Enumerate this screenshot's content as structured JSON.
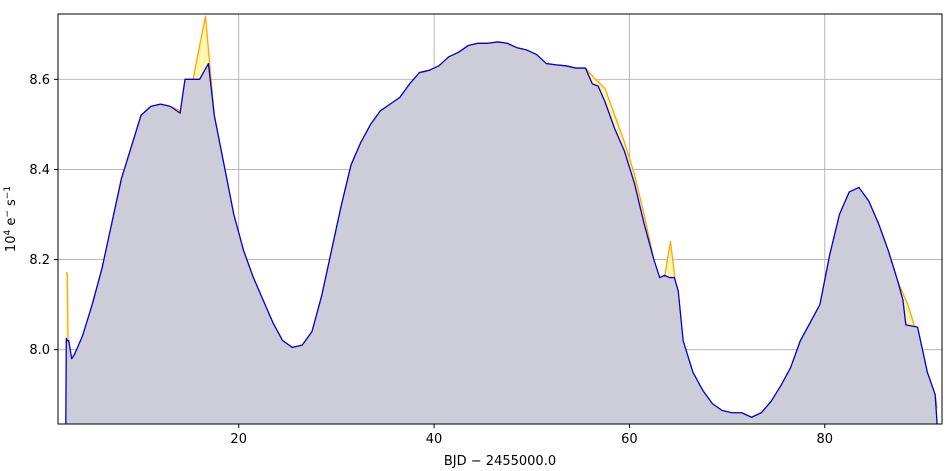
{
  "chart_data": {
    "type": "area",
    "xlabel": "BJD − 2455000.0",
    "ylabel_base": "10",
    "ylabel_base_exp": "4",
    "ylabel_unit": " e",
    "ylabel_unit_sup": "−",
    "ylabel_unit2": " s",
    "ylabel_unit2_sup": "−1",
    "xlim": [
      1.5,
      92.0
    ],
    "ylim": [
      7.835,
      8.745
    ],
    "xticks": [
      20,
      40,
      60,
      80
    ],
    "xtick_labels": [
      "20",
      "40",
      "60",
      "80"
    ],
    "yticks": [
      8.0,
      8.2,
      8.4,
      8.6
    ],
    "ytick_labels": [
      "8.0",
      "8.2",
      "8.4",
      "8.6"
    ],
    "grid": true,
    "colors": {
      "raw": "#ffa500",
      "raw_fill": "#fff6b0",
      "corrected": "#0000cd",
      "corrected_fill": "#cccdd8",
      "grid": "#b0b0b0",
      "frame": "#000000"
    },
    "series": [
      {
        "x": [
          2.3,
          2.45,
          2.55,
          3.0,
          4.0,
          5.0,
          6.0,
          7.0,
          8.0,
          9.0,
          10.0,
          11.0,
          12.0,
          13.0,
          14.0,
          14.6,
          15.5,
          16.6,
          17.5,
          18.5,
          19.5,
          20.5,
          21.5,
          22.5,
          23.5,
          24.5,
          25.5,
          26.5,
          27.5,
          28.5,
          29.5,
          30.5,
          31.5,
          32.5,
          33.5,
          34.5,
          35.5,
          36.5,
          37.5,
          38.5,
          39.5,
          40.5,
          41.5,
          42.5,
          43.5,
          44.5,
          45.5,
          46.5,
          47.5,
          48.5,
          49.5,
          50.5,
          51.5,
          52.5,
          53.5,
          54.5,
          55.5,
          56.5,
          57.5,
          58.5,
          59.5,
          60.5,
          61.5,
          62.5,
          63.2,
          64.2,
          64.6,
          65.5,
          66.5,
          67.5,
          68.5,
          69.5,
          70.5,
          71.5,
          72.5,
          73.5,
          74.5,
          75.5,
          76.5,
          77.5,
          78.5,
          79.5,
          80.5,
          81.5,
          82.5,
          83.5,
          84.5,
          85.5,
          86.5,
          87.5,
          88.5,
          89.5,
          90.5,
          91.3,
          91.5
        ],
        "y": [
          8.17,
          8.17,
          7.98,
          7.97,
          8.02,
          8.1,
          8.18,
          8.28,
          8.38,
          8.45,
          8.52,
          8.54,
          8.545,
          8.54,
          8.53,
          8.51,
          8.62,
          8.74,
          8.52,
          8.41,
          8.3,
          8.22,
          8.16,
          8.11,
          8.06,
          8.02,
          8.005,
          8.01,
          8.04,
          8.12,
          8.22,
          8.32,
          8.41,
          8.46,
          8.5,
          8.53,
          8.545,
          8.56,
          8.59,
          8.615,
          8.62,
          8.63,
          8.65,
          8.66,
          8.675,
          8.68,
          8.68,
          8.683,
          8.68,
          8.67,
          8.665,
          8.655,
          8.635,
          8.632,
          8.63,
          8.625,
          8.625,
          8.6,
          8.58,
          8.52,
          8.46,
          8.39,
          8.3,
          8.2,
          8.11,
          8.24,
          8.17,
          7.98,
          7.93,
          7.9,
          7.88,
          7.86,
          7.86,
          7.86,
          7.85,
          7.86,
          7.885,
          7.92,
          7.96,
          8.02,
          8.06,
          8.1,
          8.21,
          8.3,
          8.35,
          8.36,
          8.33,
          8.28,
          8.22,
          8.15,
          8.1,
          8.03,
          7.95,
          7.9,
          7.87
        ]
      },
      {
        "x": [
          2.3,
          2.35,
          2.45,
          2.6,
          2.9,
          3.2,
          4.0,
          5.0,
          6.0,
          7.0,
          8.0,
          9.0,
          10.0,
          11.0,
          12.0,
          13.0,
          14.0,
          14.5,
          15.5,
          16.0,
          16.9,
          17.5,
          18.5,
          19.5,
          20.5,
          21.5,
          22.5,
          23.5,
          24.5,
          25.5,
          26.5,
          27.5,
          28.5,
          29.5,
          30.5,
          31.5,
          32.5,
          33.5,
          34.5,
          35.5,
          36.5,
          37.5,
          38.5,
          39.5,
          40.5,
          41.5,
          42.5,
          43.5,
          44.5,
          45.5,
          46.5,
          47.5,
          48.5,
          49.5,
          50.5,
          51.5,
          52.5,
          53.5,
          54.5,
          55.5,
          56.2,
          56.8,
          57.5,
          58.5,
          59.5,
          60.5,
          61.5,
          62.5,
          63.1,
          63.6,
          64.1,
          64.6,
          65.0,
          65.5,
          66.5,
          67.5,
          68.5,
          69.5,
          70.5,
          71.5,
          72.5,
          73.5,
          74.5,
          75.5,
          76.5,
          77.5,
          78.5,
          79.5,
          80.5,
          81.5,
          82.5,
          83.5,
          84.5,
          85.5,
          86.5,
          87.5,
          88.0,
          88.3,
          89.5,
          90.5,
          91.3,
          91.5
        ],
        "y": [
          7.835,
          8.025,
          8.02,
          8.02,
          7.98,
          7.99,
          8.03,
          8.1,
          8.18,
          8.28,
          8.38,
          8.45,
          8.52,
          8.54,
          8.545,
          8.54,
          8.525,
          8.6,
          8.6,
          8.6,
          8.635,
          8.52,
          8.41,
          8.3,
          8.22,
          8.16,
          8.11,
          8.06,
          8.02,
          8.005,
          8.01,
          8.04,
          8.12,
          8.22,
          8.32,
          8.41,
          8.46,
          8.5,
          8.53,
          8.545,
          8.56,
          8.59,
          8.615,
          8.62,
          8.63,
          8.65,
          8.66,
          8.675,
          8.68,
          8.68,
          8.683,
          8.68,
          8.67,
          8.665,
          8.655,
          8.635,
          8.632,
          8.63,
          8.625,
          8.625,
          8.59,
          8.585,
          8.55,
          8.49,
          8.44,
          8.37,
          8.28,
          8.2,
          8.16,
          8.165,
          8.16,
          8.16,
          8.13,
          8.02,
          7.95,
          7.91,
          7.88,
          7.865,
          7.86,
          7.86,
          7.85,
          7.86,
          7.885,
          7.92,
          7.96,
          8.02,
          8.06,
          8.1,
          8.21,
          8.3,
          8.35,
          8.36,
          8.33,
          8.28,
          8.22,
          8.15,
          8.11,
          8.055,
          8.05,
          7.95,
          7.9,
          7.835
        ]
      }
    ]
  }
}
